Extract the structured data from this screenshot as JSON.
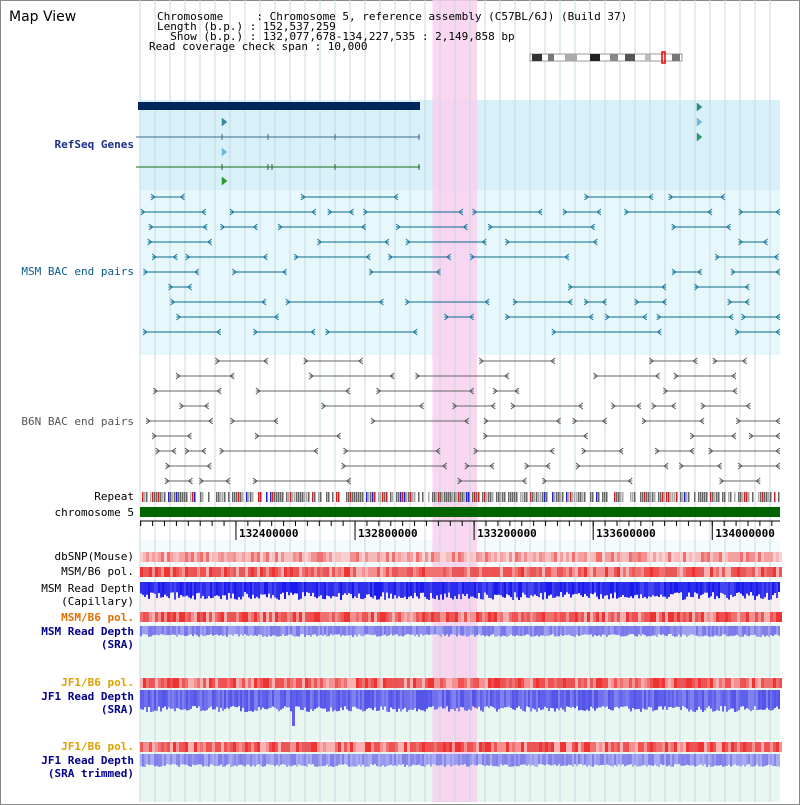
{
  "header": {
    "title": "Map View",
    "info_lines": [
      "Chromosome     : Chromosome 5, reference assembly (C57BL/6J) (Build 37)",
      "Length (b.p.) : 152,537,259",
      "  Show (b.p.) : 132,077,678-134,227,535 : 2,149,858 bp",
      "Read coverage check span : 10,000"
    ]
  },
  "tracks": {
    "refseq": {
      "label": "RefSeq Genes",
      "color": "#1a2f8a"
    },
    "msm_bac": {
      "label": "MSM BAC end pairs",
      "color": "#0a5a8a"
    },
    "b6n_bac": {
      "label": "B6N BAC end pairs",
      "color": "#555555"
    },
    "repeat": {
      "label": "Repeat"
    },
    "chromosome": {
      "label": "chromosome 5",
      "color": "#006400"
    },
    "dbsnp": {
      "label": "dbSNP(Mouse)"
    },
    "msm_b6_pol_1": {
      "label": "MSM/B6 pol."
    },
    "msm_depth_cap": {
      "label": "MSM Read Depth",
      "label2": "(Capillary)"
    },
    "msm_b6_pol_2": {
      "label": "MSM/B6 pol.",
      "color": "#e07000"
    },
    "msm_depth_sra": {
      "label": "MSM Read Depth",
      "label2": "(SRA)",
      "color": "#00008b"
    },
    "jf1_b6_pol_1": {
      "label": "JF1/B6 pol.",
      "color": "#e0a000"
    },
    "jf1_depth_sra": {
      "label": "JF1 Read Depth",
      "label2": "(SRA)",
      "color": "#00008b"
    },
    "jf1_b6_pol_2": {
      "label": "JF1/B6 pol.",
      "color": "#e0a000"
    },
    "jf1_depth_trim": {
      "label": "JF1 Read Depth",
      "label2": "(SRA trimmed)",
      "color": "#00008b"
    }
  },
  "axis": {
    "start": 132077678,
    "end": 134227535,
    "ticks": [
      132400000,
      132800000,
      133200000,
      133600000,
      134000000
    ],
    "tick_labels": [
      "132400000",
      "132800000",
      "133200000",
      "133600000",
      "134000000"
    ]
  },
  "highlight": {
    "start": 133060000,
    "end": 133210000,
    "color": "#f8d0ee"
  },
  "colors": {
    "bg_cyan": "#e6f8fb",
    "bg_light": "#f4fbfc",
    "refseq_bg": "#d8f0fa",
    "grid": "#c8d8e0",
    "depth_blue": "#2222ee",
    "depth_violet": "#7777ee",
    "snp_red": "#ee3333"
  }
}
